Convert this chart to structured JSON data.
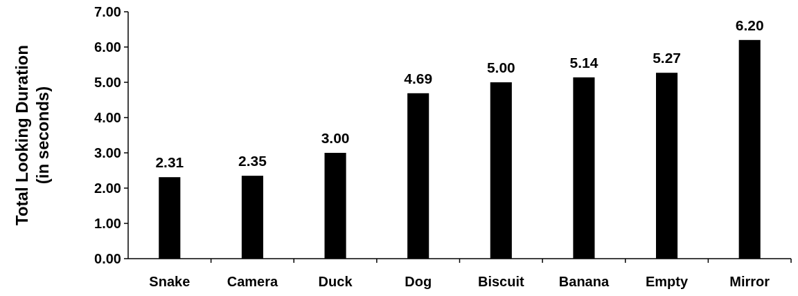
{
  "chart_data": {
    "type": "bar",
    "ylabel": "Total Looking Duration\n(in seconds)",
    "categories": [
      "Snake",
      "Camera",
      "Duck",
      "Dog",
      "Biscuit",
      "Banana",
      "Empty",
      "Mirror"
    ],
    "values": [
      2.31,
      2.35,
      3.0,
      4.69,
      5.0,
      5.14,
      5.27,
      6.2
    ],
    "value_labels": [
      "2.31",
      "2.35",
      "3.00",
      "4.69",
      "5.00",
      "5.14",
      "5.27",
      "6.20"
    ],
    "color": "#000000",
    "ylim": [
      0,
      7
    ],
    "yticks": [
      {
        "value": 0,
        "label": "0.00"
      },
      {
        "value": 1,
        "label": "1.00"
      },
      {
        "value": 2,
        "label": "2.00"
      },
      {
        "value": 3,
        "label": "3.00"
      },
      {
        "value": 4,
        "label": "4.00"
      },
      {
        "value": 5,
        "label": "5.00"
      },
      {
        "value": 6,
        "label": "6.00"
      },
      {
        "value": 7,
        "label": "7.00"
      }
    ],
    "grid": false
  }
}
